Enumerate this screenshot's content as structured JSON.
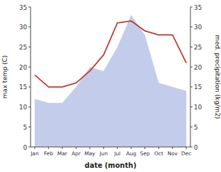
{
  "chart_data": {
    "type": "line",
    "categories": [
      "Jan",
      "Feb",
      "Mar",
      "Apr",
      "May",
      "Jun",
      "Jul",
      "Aug",
      "Sep",
      "Oct",
      "Nov",
      "Dec"
    ],
    "series": [
      {
        "type": "area",
        "color": "#b8c4e8",
        "values": [
          12,
          11,
          11,
          15,
          20,
          19,
          25,
          33,
          28,
          16,
          15,
          14
        ]
      },
      {
        "type": "line",
        "color": "#c0392b",
        "axis": "y2",
        "values": [
          18,
          15,
          15,
          16,
          19,
          23,
          31,
          31.5,
          29,
          28,
          28,
          21
        ]
      }
    ],
    "xlabel": "date (month)",
    "ylabel": "max temp (C)",
    "y2label": "med. precipitation (kg/m2)",
    "ylim": [
      0,
      35
    ],
    "yticks": [
      0,
      5,
      10,
      15,
      20,
      25,
      30,
      35
    ],
    "y2lim": [
      0,
      35
    ],
    "y2ticks": [
      0,
      5,
      10,
      15,
      20,
      25,
      30,
      35
    ],
    "grid": false
  }
}
